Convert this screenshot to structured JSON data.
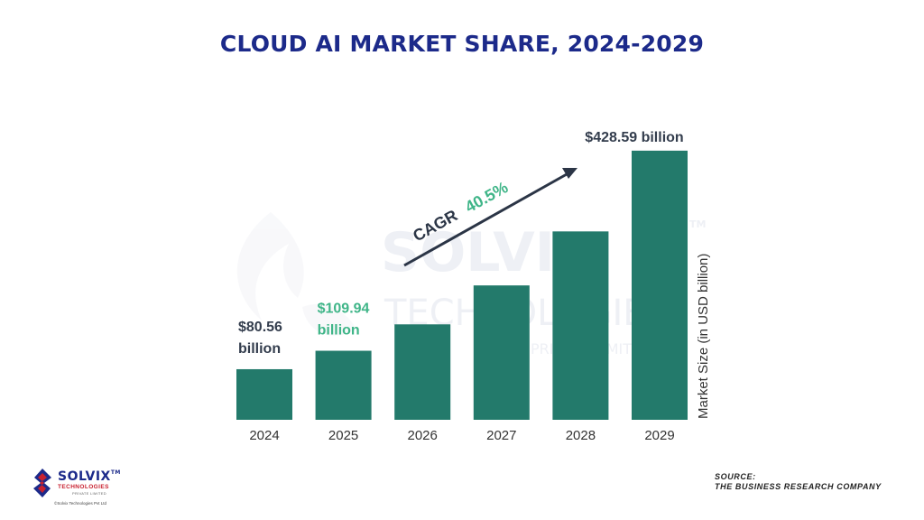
{
  "header": {
    "title": "CLOUD AI MARKET SHARE, 2024-2029"
  },
  "chart_data": {
    "type": "bar",
    "categories": [
      "2024",
      "2025",
      "2026",
      "2027",
      "2028",
      "2029"
    ],
    "values": [
      80.56,
      109.94,
      152,
      214,
      300,
      428.59
    ],
    "unit": "USD billion",
    "ylabel": "Market Size (in USD billion)",
    "ylim": [
      0,
      450
    ],
    "grid": false,
    "legend": "none",
    "data_labels": [
      {
        "category": "2024",
        "line1": "$80.56",
        "line2": "billion",
        "color": "#333d4d"
      },
      {
        "category": "2025",
        "line1": "$109.94",
        "line2": "billion",
        "color": "#3fb588"
      },
      {
        "category": "2029",
        "line1": "$428.59 billion",
        "line2": "",
        "color": "#333d4d"
      }
    ],
    "annotation": {
      "prefix": "CAGR",
      "value": "40.5%"
    },
    "colors": {
      "bar": "#237a6b",
      "annotation_prefix": "#2b3546",
      "annotation_value": "#3fb588",
      "arrow": "#2b3546"
    }
  },
  "watermark": {
    "line1": "SOLVIX",
    "line2": "TECHNOLOGIES",
    "line3": "PRIVATE LIMITED",
    "tm": "TM"
  },
  "source": {
    "line1": "SOURCE:",
    "line2": "THE BUSINESS RESEARCH COMPANY"
  },
  "logo": {
    "brand": "SOLVIX",
    "tm": "TM",
    "tagline": "TECHNOLOGIES",
    "subtag": "PRIVATE LIMITED",
    "copyright": "©Solvix Technologies Pvt Ltd"
  }
}
